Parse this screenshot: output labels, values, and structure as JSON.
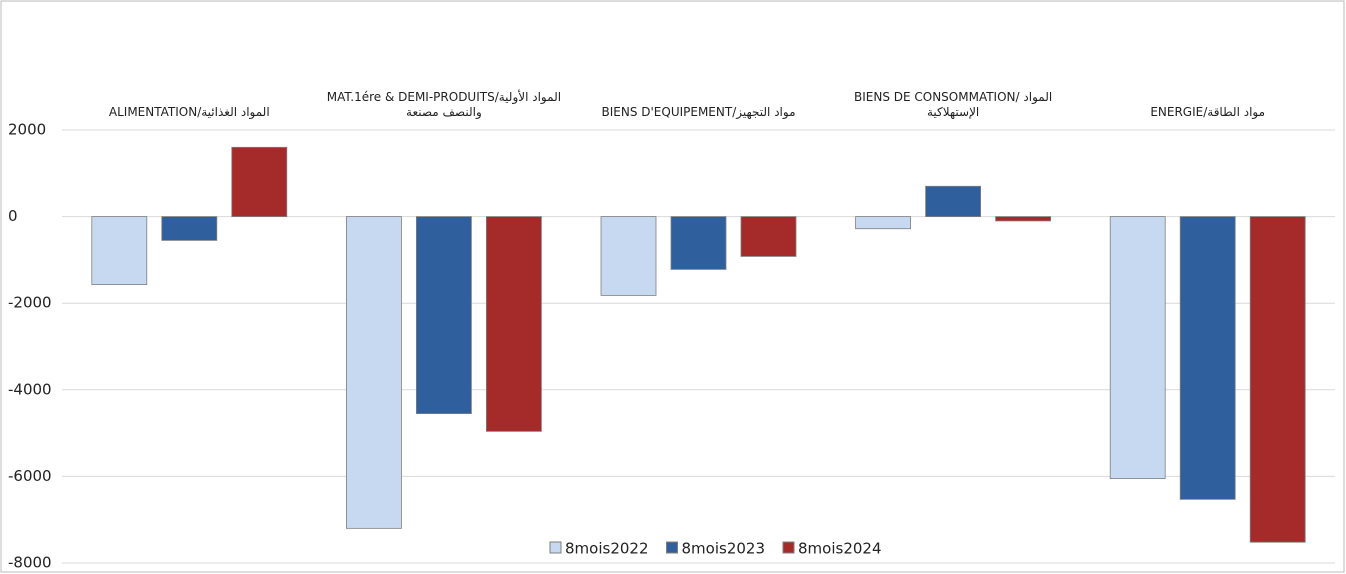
{
  "chart_data": {
    "type": "bar",
    "categories": [
      "ALIMENTATION/المواد الغذائية",
      "MAT.1ére & DEMI-PRODUITS/المواد الأولية والنصف مصنعة",
      "BIENS D'EQUIPEMENT/مواد التجهيز",
      "BIENS DE CONSOMMATION/ المواد الإستهلاكية",
      "ENERGIE/مواد الطاقة"
    ],
    "series": [
      {
        "name": "8mois2022",
        "color": "#c6d9f1",
        "values": [
          -1570,
          -7200,
          -1820,
          -280,
          -6050
        ]
      },
      {
        "name": "8mois2023",
        "color": "#2f5f9c",
        "values": [
          -550,
          -4550,
          -1220,
          700,
          -6530
        ]
      },
      {
        "name": "8mois2024",
        "color": "#a52a2a",
        "values": [
          1600,
          -4960,
          -920,
          -100,
          -7520
        ]
      }
    ],
    "ylim": [
      -8000,
      2000
    ],
    "yticks": [
      2000,
      0,
      -2000,
      -4000,
      -6000,
      -8000
    ],
    "grid": true,
    "legend": "bottom"
  }
}
